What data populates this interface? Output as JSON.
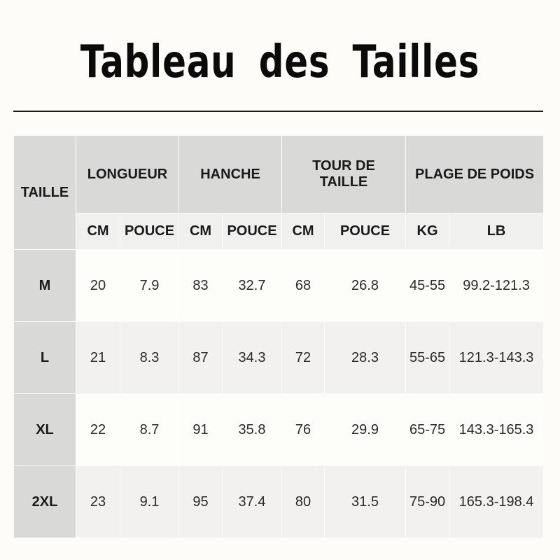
{
  "title": "Tableau des Tailles",
  "headers": {
    "size": "TAILLE",
    "groups": [
      "LONGUEUR",
      "HANCHE",
      "TOUR DE TAILLE",
      "PLAGE DE POIDS"
    ],
    "sub": [
      "CM",
      "POUCE",
      "CM",
      "POUCE",
      "CM",
      "POUCE",
      "KG",
      "LB"
    ]
  },
  "rows": [
    {
      "size": "M",
      "values": [
        "20",
        "7.9",
        "83",
        "32.7",
        "68",
        "26.8",
        "45-55",
        "99.2-121.3"
      ]
    },
    {
      "size": "L",
      "values": [
        "21",
        "8.3",
        "87",
        "34.3",
        "72",
        "28.3",
        "55-65",
        "121.3-143.3"
      ]
    },
    {
      "size": "XL",
      "values": [
        "22",
        "8.7",
        "91",
        "35.8",
        "76",
        "29.9",
        "65-75",
        "143.3-165.3"
      ]
    },
    {
      "size": "2XL",
      "values": [
        "23",
        "9.1",
        "95",
        "37.4",
        "80",
        "31.5",
        "75-90",
        "165.3-198.4"
      ]
    }
  ]
}
